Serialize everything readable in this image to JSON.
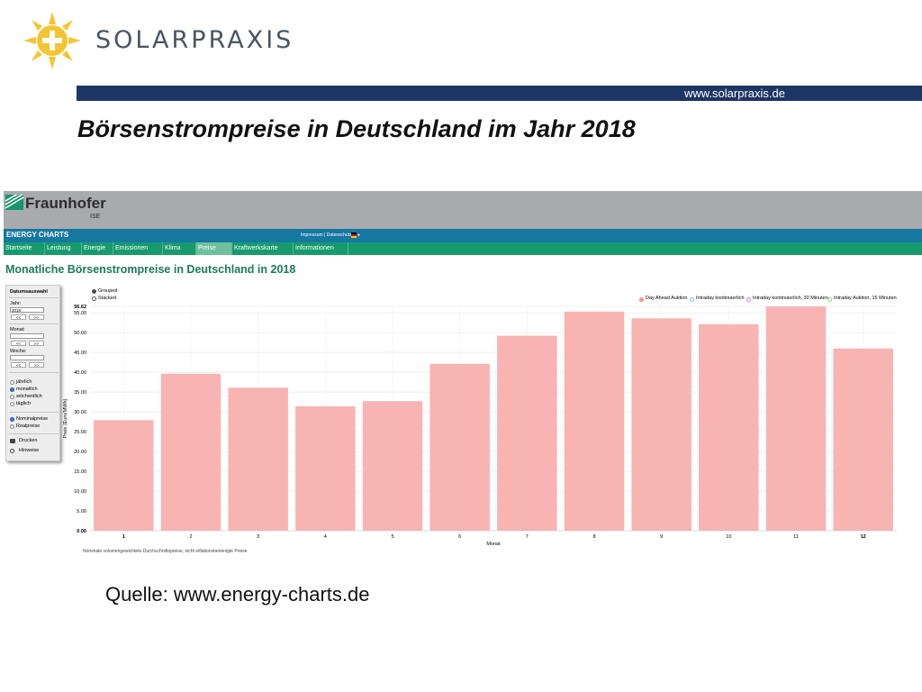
{
  "slide": {
    "brand": "SOLARPRAXIS",
    "url": "www.solarpraxis.de",
    "title": "Börsenstrompreise in Deutschland im Jahr 2018",
    "source": "Quelle: www.energy-charts.de"
  },
  "site": {
    "org": "Fraunhofer",
    "org_sub": "ISE",
    "app_title": "ENERGY CHARTS",
    "top_links": "Impressum | Datenschutz",
    "nav": [
      "Startseite",
      "Leistung",
      "Energie",
      "Emissionen",
      "Klima",
      "Preise",
      "Kraftwerkskarte",
      "Informationen"
    ],
    "active_nav": "Preise",
    "page_heading": "Monatliche Börsenstrompreise in Deutschland in 2018"
  },
  "sidebar": {
    "title": "Datumsauswahl",
    "year_label": "Jahr:",
    "year_value": "2018",
    "month_label": "Monat:",
    "week_label": "Woche:",
    "prev": "<<",
    "next": ">>",
    "intervals": [
      "jährlich",
      "monatlich",
      "wöchentlich",
      "täglich"
    ],
    "interval_selected": "monatlich",
    "price_types": [
      "Nominalpreise",
      "Realpreise"
    ],
    "price_selected": "Nominalpreise",
    "print": "Drucken",
    "hints": "Hinweise"
  },
  "chart_options": {
    "grouped": "Grouped",
    "stacked": "Stacked",
    "selected": "Grouped"
  },
  "colors": {
    "bar": "#f8b3b3",
    "day_ahead": "#f49090",
    "intraday_cont": "#8fb9d8",
    "intraday_30": "#c889c8",
    "intraday_15": "#95cf8a"
  },
  "chart_data": {
    "type": "bar",
    "categories": [
      "1",
      "2",
      "3",
      "4",
      "5",
      "6",
      "7",
      "8",
      "9",
      "10",
      "11",
      "12"
    ],
    "series": [
      {
        "name": "Day Ahead Auktion",
        "values": [
          27.9,
          39.6,
          36.1,
          31.4,
          32.7,
          42.1,
          49.2,
          55.3,
          53.6,
          52.1,
          56.6,
          46.0
        ]
      }
    ],
    "legend": [
      "Day Ahead Auktion",
      "Intraday kontinuierlich",
      "Intraday kontinuierlich, 30 Minuten",
      "Intraday Auktion, 15 Minuten"
    ],
    "legend_placement": "top-right",
    "ylabel": "Preis (Euro/MWh)",
    "xlabel": "Monat",
    "yticks": [
      "0.00",
      "5.00",
      "10.00",
      "15.00",
      "20.00",
      "25.00",
      "30.00",
      "35.00",
      "40.00",
      "45.00",
      "50.00",
      "55.00",
      "56.62"
    ],
    "ylim": [
      0,
      56.62
    ],
    "grid": true,
    "footnote": "Nominale volumengewichtete Durchschnittspreise, nicht inflationsbereinigte Preise"
  }
}
